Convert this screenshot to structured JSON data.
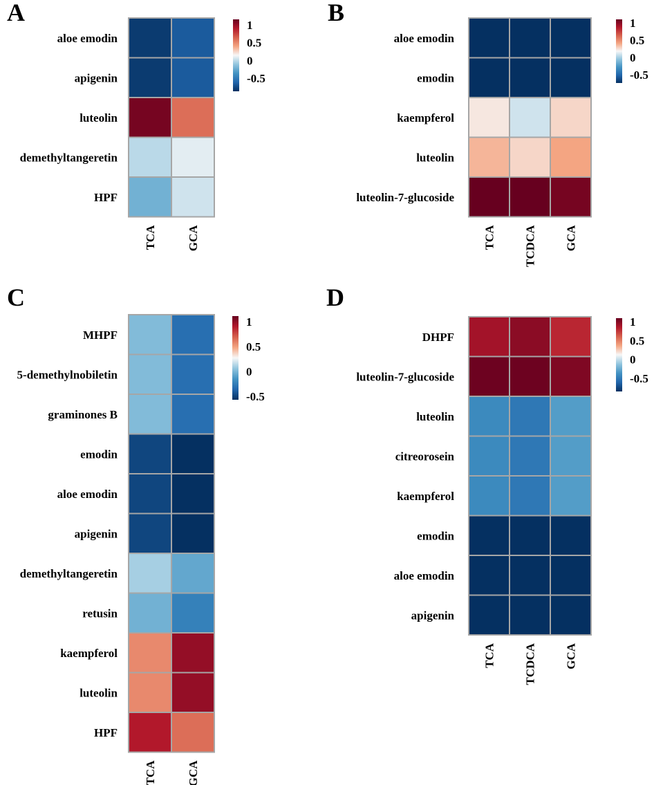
{
  "colors": {
    "scale_low": "#0b2c5c",
    "scale_mid": "#f7f7f7",
    "scale_high": "#67001f",
    "cell_border": "#a6a6a6"
  },
  "chart_data": [
    {
      "type": "heatmap",
      "panel_label": "A",
      "rows": [
        "aloe emodin",
        "apigenin",
        "luteolin",
        "demethyltangeretin",
        "HPF"
      ],
      "columns": [
        "TCA",
        "GCA"
      ],
      "values": [
        [
          -0.95,
          -0.8
        ],
        [
          -0.95,
          -0.8
        ],
        [
          0.95,
          0.45
        ],
        [
          -0.15,
          -0.05
        ],
        [
          -0.35,
          -0.1
        ]
      ],
      "colorbar": {
        "ticks": [
          1,
          0.5,
          0,
          -0.5
        ],
        "range": [
          -1,
          1
        ]
      }
    },
    {
      "type": "heatmap",
      "panel_label": "B",
      "rows": [
        "aloe emodin",
        "emodin",
        "kaempferol",
        "luteolin",
        "luteolin-7-glucoside"
      ],
      "columns": [
        "TCA",
        "TCDCA",
        "GCA"
      ],
      "values": [
        [
          -1,
          -1,
          -1
        ],
        [
          -1,
          -1,
          -1
        ],
        [
          0.05,
          -0.1,
          0.1
        ],
        [
          0.2,
          0.1,
          0.25
        ],
        [
          1,
          1,
          0.95
        ]
      ],
      "colorbar": {
        "ticks": [
          1,
          0.5,
          0,
          -0.5
        ],
        "range": [
          -1,
          1
        ]
      }
    },
    {
      "type": "heatmap",
      "panel_label": "C",
      "rows": [
        "MHPF",
        "5-demethylnobiletin",
        "graminones B",
        "emodin",
        "aloe emodin",
        "apigenin",
        "demethyltangeretin",
        "retusin",
        "kaempferol",
        "luteolin",
        "HPF"
      ],
      "columns": [
        "TCA",
        "GCA"
      ],
      "values": [
        [
          -0.3,
          -0.7
        ],
        [
          -0.3,
          -0.7
        ],
        [
          -0.3,
          -0.7
        ],
        [
          -0.9,
          -1
        ],
        [
          -0.9,
          -1
        ],
        [
          -0.9,
          -1
        ],
        [
          -0.2,
          -0.4
        ],
        [
          -0.35,
          -0.6
        ],
        [
          0.35,
          0.85
        ],
        [
          0.35,
          0.85
        ],
        [
          0.75,
          0.45
        ]
      ],
      "colorbar": {
        "ticks": [
          1,
          0.5,
          0,
          -0.5
        ],
        "range": [
          -1,
          1
        ]
      }
    },
    {
      "type": "heatmap",
      "panel_label": "D",
      "rows": [
        "DHPF",
        "luteolin-7-glucoside",
        "luteolin",
        "citreorosein",
        "kaempferol",
        "emodin",
        "aloe emodin",
        "apigenin"
      ],
      "columns": [
        "TCA",
        "TCDCA",
        "GCA"
      ],
      "values": [
        [
          0.8,
          0.88,
          0.7
        ],
        [
          0.98,
          0.98,
          0.92
        ],
        [
          -0.55,
          -0.65,
          -0.45
        ],
        [
          -0.55,
          -0.65,
          -0.45
        ],
        [
          -0.55,
          -0.65,
          -0.45
        ],
        [
          -1,
          -1,
          -1
        ],
        [
          -1,
          -1,
          -1
        ],
        [
          -1,
          -1,
          -1
        ]
      ],
      "colorbar": {
        "ticks": [
          1,
          0.5,
          0,
          -0.5
        ],
        "range": [
          -1,
          1
        ]
      }
    }
  ]
}
